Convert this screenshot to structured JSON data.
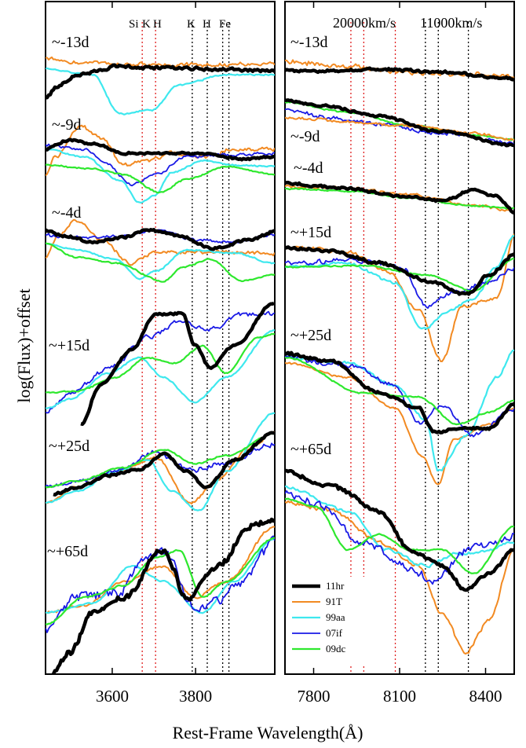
{
  "chart_data": {
    "type": "line",
    "xlabel": "Rest-Frame Wavelength(Å)",
    "ylabel": "log(Flux)+offset",
    "legend": {
      "placement": "bottom-right",
      "entries": [
        {
          "label": "11hr",
          "color": "#000000",
          "width": 4.5
        },
        {
          "label": "91T",
          "color": "#f28a22",
          "width": 2
        },
        {
          "label": "99aa",
          "color": "#3ee8ee",
          "width": 2.2
        },
        {
          "label": "07if",
          "color": "#1a1ae6",
          "width": 1.8
        },
        {
          "label": "09dc",
          "color": "#2ee82e",
          "width": 2.2
        }
      ]
    },
    "panels": [
      {
        "xlim": [
          3440,
          3990
        ],
        "ticks": [
          3600,
          3800
        ],
        "line_labels": [
          "Si",
          "K",
          "H",
          "K",
          "H",
          "Fe"
        ],
        "markers": [
          {
            "x": 3672,
            "color": "red"
          },
          {
            "x": 3704,
            "color": "red"
          },
          {
            "x": 3792,
            "color": "black"
          },
          {
            "x": 3828,
            "color": "black"
          },
          {
            "x": 3865,
            "color": "black"
          },
          {
            "x": 3880,
            "color": "black"
          }
        ],
        "phases": [
          "~-13d",
          "~-9d",
          "~-4d",
          "~+15d",
          "~+25d",
          "~+65d"
        ]
      },
      {
        "xlim": [
          7700,
          8500
        ],
        "ticks": [
          7800,
          8100,
          8400
        ],
        "velocity_labels": [
          "20000km/s",
          "11000km/s"
        ],
        "markers": [
          {
            "x": 7930,
            "color": "red"
          },
          {
            "x": 7975,
            "color": "red"
          },
          {
            "x": 8085,
            "color": "red"
          },
          {
            "x": 8190,
            "color": "black"
          },
          {
            "x": 8235,
            "color": "black"
          },
          {
            "x": 8340,
            "color": "black"
          }
        ],
        "phases": [
          "~-13d",
          "~-9d",
          "~-4d",
          "~+15d",
          "~+25d",
          "~+65d"
        ]
      }
    ]
  }
}
